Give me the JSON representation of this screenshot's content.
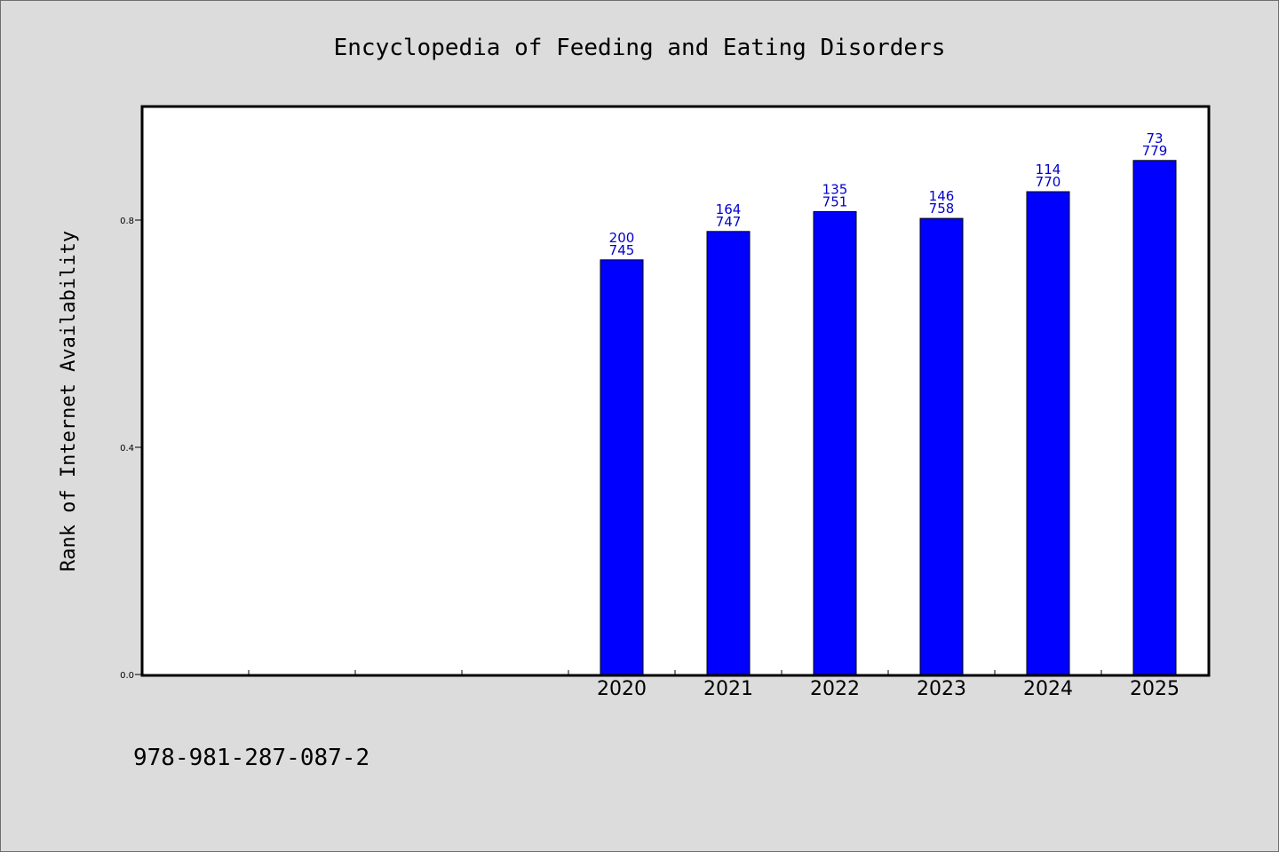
{
  "chart_data": {
    "type": "bar",
    "title": "Encyclopedia of Feeding and Eating Disorders",
    "ylabel": "Rank of Internet Availability",
    "xlabel": "",
    "x_slots": 10,
    "categories": [
      "2020",
      "2021",
      "2022",
      "2023",
      "2024",
      "2025"
    ],
    "values": [
      0.73,
      0.78,
      0.815,
      0.803,
      0.85,
      0.905
    ],
    "label_top": [
      "200",
      "164",
      "135",
      "146",
      "114",
      "73"
    ],
    "label_bottom": [
      "745",
      "747",
      "751",
      "758",
      "770",
      "779"
    ],
    "ylim": [
      0,
      1.0
    ],
    "yticks": [
      "0.0",
      "0.4",
      "0.8"
    ],
    "ytick_values": [
      0,
      0.4,
      0.8
    ],
    "grid": false
  },
  "footer": {
    "isbn": "978-981-287-087-2"
  },
  "colors": {
    "bar_fill": "#0000ff",
    "bar_stroke": "#000000",
    "label_color": "#0000cc",
    "page_background": "#dcdcdc",
    "plot_background": "#ffffff"
  }
}
